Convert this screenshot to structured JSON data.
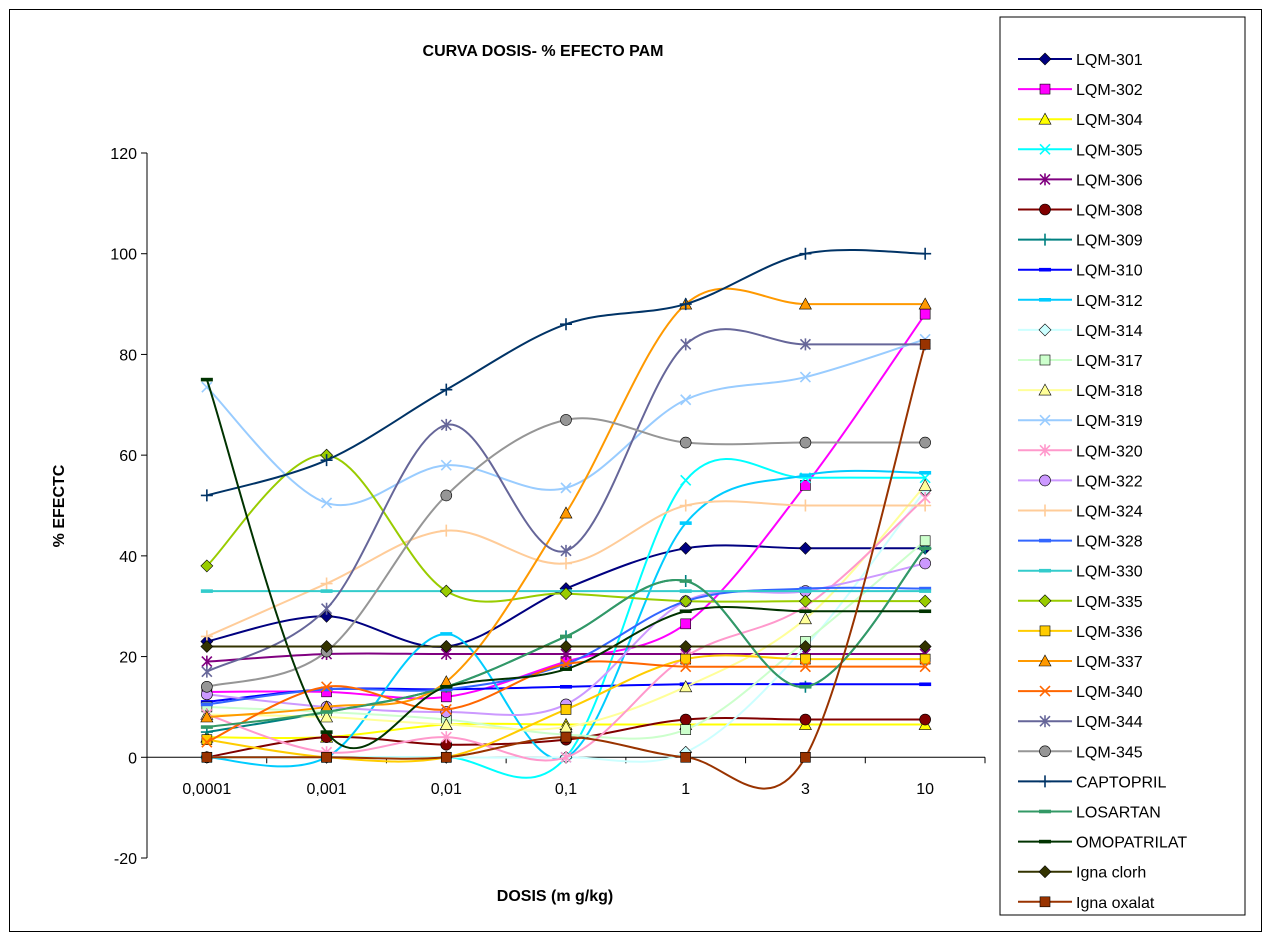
{
  "chart_data": {
    "type": "line",
    "title": "CURVA DOSIS- % EFECTO PAM",
    "xlabel": "DOSIS (m g/kg)",
    "ylabel": "% EFECTC",
    "categories": [
      "0,0001",
      "0,001",
      "0,01",
      "0,1",
      "1",
      "3",
      "10"
    ],
    "ylim": [
      -20,
      120
    ],
    "yticks": [
      -20,
      0,
      20,
      40,
      60,
      80,
      100,
      120
    ],
    "grid": false,
    "legend_position": "right",
    "series": [
      {
        "name": "LQM-301",
        "color": "#000080",
        "marker": "diamond",
        "values": [
          23,
          28,
          22,
          33.5,
          41.5,
          41.5,
          41.5
        ]
      },
      {
        "name": "LQM-302",
        "color": "#FF00FF",
        "marker": "square",
        "values": [
          13,
          13,
          12,
          19,
          26.5,
          54,
          88
        ]
      },
      {
        "name": "LQM-304",
        "color": "#FFFF00",
        "marker": "triangle",
        "values": [
          4,
          4,
          6.5,
          6.5,
          6.5,
          6.5,
          6.5
        ]
      },
      {
        "name": "LQM-305",
        "color": "#00FFFF",
        "marker": "x",
        "values": [
          0,
          0,
          0,
          0,
          55,
          55.5,
          55.5
        ]
      },
      {
        "name": "LQM-306",
        "color": "#800080",
        "marker": "star",
        "values": [
          19,
          20.5,
          20.5,
          20.5,
          20.5,
          20.5,
          20.5
        ]
      },
      {
        "name": "LQM-308",
        "color": "#800000",
        "marker": "circle",
        "values": [
          0,
          4,
          2.5,
          3.5,
          7.5,
          7.5,
          7.5
        ]
      },
      {
        "name": "LQM-309",
        "color": "#008080",
        "marker": "plus",
        "values": [
          5,
          9,
          14,
          24,
          35,
          14,
          41.5
        ]
      },
      {
        "name": "LQM-310",
        "color": "#0000FF",
        "marker": "dash",
        "values": [
          11,
          13.5,
          13.5,
          14,
          14.5,
          14.5,
          14.5
        ]
      },
      {
        "name": "LQM-312",
        "color": "#00CCFF",
        "marker": "dash",
        "values": [
          0,
          0,
          24.5,
          0,
          46.5,
          56,
          56.5
        ]
      },
      {
        "name": "LQM-314",
        "color": "#CCFFFF",
        "marker": "diamond",
        "values": [
          0,
          0,
          0,
          0,
          1,
          22,
          53
        ]
      },
      {
        "name": "LQM-317",
        "color": "#CCFFCC",
        "marker": "square",
        "values": [
          10,
          9,
          7.5,
          4.5,
          5.5,
          23,
          43
        ]
      },
      {
        "name": "LQM-318",
        "color": "#FFFF99",
        "marker": "triangle",
        "values": [
          8.5,
          8,
          6.5,
          6,
          14,
          27.5,
          54
        ]
      },
      {
        "name": "LQM-319",
        "color": "#99CCFF",
        "marker": "x",
        "values": [
          73.5,
          50.5,
          58,
          53.5,
          71,
          75.5,
          83
        ]
      },
      {
        "name": "LQM-320",
        "color": "#FF99CC",
        "marker": "star",
        "values": [
          8.5,
          1,
          4,
          0,
          20,
          30,
          51.5
        ]
      },
      {
        "name": "LQM-322",
        "color": "#CC99FF",
        "marker": "circle",
        "values": [
          12.5,
          10,
          9,
          10.5,
          31,
          33,
          38.5
        ]
      },
      {
        "name": "LQM-324",
        "color": "#FFCC99",
        "marker": "plus",
        "values": [
          24,
          34.5,
          45,
          38.5,
          50,
          50,
          50
        ]
      },
      {
        "name": "LQM-328",
        "color": "#3366FF",
        "marker": "dash",
        "values": [
          10.5,
          13.5,
          13.5,
          18.5,
          31,
          33.5,
          33.5
        ]
      },
      {
        "name": "LQM-330",
        "color": "#33CCCC",
        "marker": "dash",
        "values": [
          33,
          33,
          33,
          33,
          33,
          33,
          33
        ]
      },
      {
        "name": "LQM-335",
        "color": "#99CC00",
        "marker": "diamond",
        "values": [
          38,
          60,
          33,
          32.5,
          31,
          31,
          31
        ]
      },
      {
        "name": "LQM-336",
        "color": "#FFCC00",
        "marker": "square",
        "values": [
          3.5,
          0,
          0,
          9.5,
          19.5,
          19.5,
          19.5
        ]
      },
      {
        "name": "LQM-337",
        "color": "#FF9900",
        "marker": "triangle",
        "values": [
          8,
          10,
          15,
          48.5,
          90,
          90,
          90
        ]
      },
      {
        "name": "LQM-340",
        "color": "#FF6600",
        "marker": "x",
        "values": [
          3,
          14,
          9.5,
          18.5,
          18,
          18,
          18
        ]
      },
      {
        "name": "LQM-344",
        "color": "#666699",
        "marker": "star",
        "values": [
          17,
          29.5,
          66,
          41,
          82,
          82,
          82
        ]
      },
      {
        "name": "LQM-345",
        "color": "#969696",
        "marker": "circle",
        "values": [
          14,
          21,
          52,
          67,
          62.5,
          62.5,
          62.5
        ]
      },
      {
        "name": "CAPTOPRIL",
        "color": "#003366",
        "marker": "plus",
        "values": [
          52,
          59,
          73,
          86,
          90,
          100,
          100
        ]
      },
      {
        "name": "LOSARTAN",
        "color": "#339966",
        "marker": "dash",
        "values": [
          6,
          9,
          14,
          24,
          35,
          14,
          41.5
        ]
      },
      {
        "name": "OMOPATRILAT",
        "color": "#003300",
        "marker": "dash",
        "values": [
          75,
          5,
          14,
          17.5,
          29,
          29,
          29
        ]
      },
      {
        "name": "Igna clorh",
        "color": "#333300",
        "marker": "diamond",
        "values": [
          22,
          22,
          22,
          22,
          22,
          22,
          22
        ]
      },
      {
        "name": "Igna oxalat",
        "color": "#993300",
        "marker": "square",
        "values": [
          0,
          0,
          0,
          4,
          0,
          0,
          82
        ]
      }
    ]
  }
}
